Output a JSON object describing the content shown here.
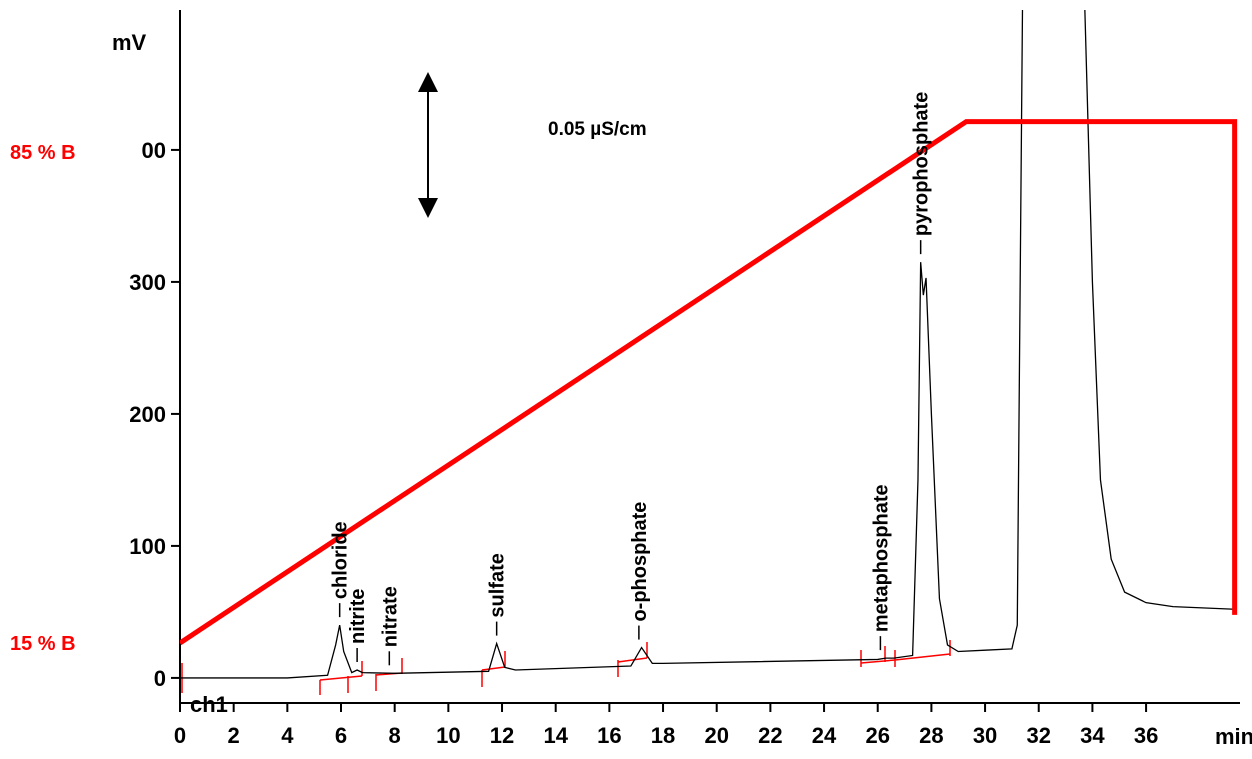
{
  "chart_data": {
    "type": "line",
    "y_label": "mV",
    "x_label": "min",
    "channel": "ch1",
    "scale_label": "0.05 µS/cm",
    "xlim": [
      0,
      39.5
    ],
    "xticks": [
      0,
      2,
      4,
      6,
      8,
      10,
      12,
      14,
      16,
      18,
      20,
      22,
      24,
      26,
      28,
      30,
      32,
      34,
      36
    ],
    "ylim": [
      -19,
      506
    ],
    "yticks": [
      0,
      100,
      200,
      300,
      {
        "value": 400,
        "label": "00"
      }
    ],
    "y2lim": [
      6.45,
      105.2
    ],
    "y2ticks": [
      {
        "value": 15,
        "label": "15 % B"
      },
      {
        "value": 85,
        "label": "85 % B"
      }
    ],
    "series": [
      {
        "color": "#000000",
        "x": [
          0,
          4,
          5.5,
          5.8,
          5.95,
          6.1,
          6.4,
          6.6,
          6.8,
          8,
          11.5,
          11.8,
          12.1,
          12.5,
          16.8,
          17.2,
          17.6,
          18,
          26,
          26.3,
          26.6,
          27.3,
          27.5,
          27.6,
          27.7,
          27.8,
          28.0,
          28.3,
          28.6,
          29,
          30,
          31,
          31.2,
          31.4,
          33.7,
          34.0,
          34.3,
          34.7,
          35.2,
          36,
          37,
          39.3
        ],
        "values": [
          0,
          0,
          2,
          25,
          40,
          20,
          4,
          6,
          4,
          3.5,
          5,
          26,
          8,
          6,
          9,
          23,
          11,
          11,
          14,
          15,
          15,
          17,
          150,
          315,
          290,
          303,
          200,
          60,
          25,
          20,
          21,
          22,
          40,
          520,
          520,
          300,
          150,
          90,
          65,
          57,
          54,
          52
        ]
      },
      {
        "color": "#ff0000",
        "axis": "y2",
        "x": [
          0,
          29.3,
          39.3,
          39.3
        ],
        "values": [
          15,
          89.3,
          89.3,
          19
        ]
      }
    ],
    "peaks": [
      {
        "label": "chloride",
        "time": 5.95
      },
      {
        "label": "nitrite",
        "time": 6.6
      },
      {
        "label": "nitrate",
        "time": 7.8
      },
      {
        "label": "sulfate",
        "time": 11.8
      },
      {
        "label": "o-phosphate",
        "time": 17.1
      },
      {
        "label": "metaphosphate",
        "time": 26.1
      },
      {
        "label": "pyrophosphate",
        "time": 27.6
      }
    ]
  }
}
